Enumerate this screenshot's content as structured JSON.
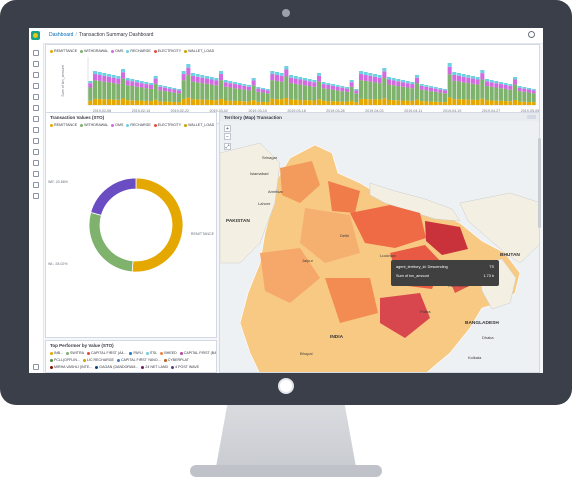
{
  "breadcrumb": {
    "root": "Dashboard",
    "current": "Transaction Summary Dashboard"
  },
  "legend_series": [
    {
      "name": "REMITTANCE",
      "color": "#e5a800"
    },
    {
      "name": "WITHDRAWAL",
      "color": "#7eb26d"
    },
    {
      "name": "DMS",
      "color": "#d36be0"
    },
    {
      "name": "RECHARGE",
      "color": "#6ed0e0"
    },
    {
      "name": "ELECTRICITY",
      "color": "#e24d42"
    },
    {
      "name": "WALLET_LOAD",
      "color": "#cca300"
    }
  ],
  "histogram_panel": {
    "y_label": "Sum of txn_amount",
    "x_label": "txn_start_time per day",
    "x_ticks": [
      "2019-02-06",
      "2019-02-14",
      "2019-02-22",
      "2019-03-02",
      "2019-03-10",
      "2019-03-18",
      "2019-03-26",
      "2019-04-03",
      "2019-04-11",
      "2019-04-19",
      "2019-04-27",
      "2019-05-05"
    ]
  },
  "donut_panel": {
    "title": "Transaction Values (STO)",
    "labels": [
      "WE: 20.66%",
      "WL: 28.02%",
      "REMITTANCE"
    ],
    "chart_data": {
      "type": "pie",
      "values": [
        51.32,
        28.02,
        20.66
      ],
      "colors": [
        "#e5a800",
        "#7eb26d",
        "#6a4cc3"
      ]
    }
  },
  "map_panel": {
    "title": "Territory (Map) Transaction",
    "places": {
      "pakistan": "PAKISTAN",
      "nepal": "NEPAL",
      "bhutan": "BHUTAN",
      "bangladesh": "BANGLADESH",
      "india": "INDIA",
      "islamabad": "Islamabad",
      "lahore": "Lahore",
      "kathmandu": "Kathmandu",
      "dhaka": "Dhaka",
      "delhi": "Delhi",
      "jaipur": "Jaipur",
      "lucknow": "Lucknow",
      "patna": "Patna",
      "kolkata": "Kolkata",
      "bhopal": "Bhopal",
      "srinagar": "Srinagar",
      "amritsar": "Amritsar"
    },
    "tooltip": {
      "row1_label": "agent_territory_id: Descending",
      "row1_value": "TS",
      "row2_label": "Sum of txn_amount",
      "row2_value": "1.73 b"
    }
  },
  "top_performer_panel": {
    "title": "Top Performer by Value (STO)",
    "legend_row1": [
      {
        "name": "INB...",
        "color": "#e5a800"
      },
      {
        "name": "SWITRA",
        "color": "#7eb26d"
      },
      {
        "name": "CAPITAL FIRST (A4...",
        "color": "#e24d42"
      },
      {
        "name": "PAYU",
        "color": "#1f78c1"
      },
      {
        "name": "ITSL",
        "color": "#6ed0e0"
      },
      {
        "name": "BHEED",
        "color": "#ef843c"
      },
      {
        "name": "CAPITAL FIRST (B4...",
        "color": "#ba43a9"
      }
    ],
    "legend_row2": [
      {
        "name": "PCLL(OFFLIN...",
        "color": "#508642"
      },
      {
        "name": "LIC RECHARGE",
        "color": "#cca300"
      },
      {
        "name": "CAPITAL FIRST YANO...",
        "color": "#447ebc"
      },
      {
        "name": "CYBERPLAT",
        "color": "#c15c17"
      }
    ],
    "legend_row3": [
      {
        "name": "MIRHA VASHLI (INTE...",
        "color": "#890f02"
      },
      {
        "name": "GAGAN (DANDORAM...",
        "color": "#0a437c"
      },
      {
        "name": "24 NET LAND",
        "color": "#6d1f62"
      },
      {
        "name": "4 POST WAVE",
        "color": "#584477"
      }
    ]
  }
}
